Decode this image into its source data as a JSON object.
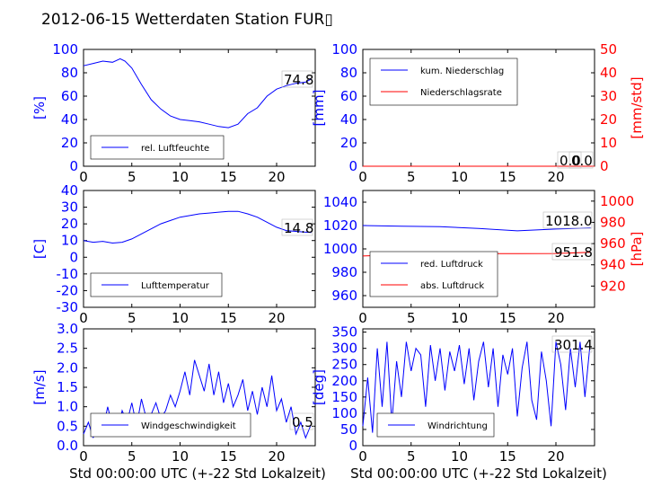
{
  "page": {
    "title": "2012-06-15 Wetterdaten Station FUR▯",
    "xlabel": "Std 00:00:00 UTC (+-22 Std Lokalzeit)"
  },
  "chart_data": [
    {
      "id": "humidity",
      "type": "line",
      "ylabel": "[%]",
      "xlim": [
        0,
        24
      ],
      "ylim": [
        0,
        100
      ],
      "xticks": [
        0,
        5,
        10,
        15,
        20
      ],
      "yticks": [
        0,
        20,
        40,
        60,
        80,
        100
      ],
      "legend": [
        "rel. Luftfeuchte"
      ],
      "legend_placement": "lower-left",
      "series": [
        {
          "name": "rel. Luftfeuchte",
          "color": "#0000ff",
          "x": [
            0,
            1,
            2,
            3,
            3.8,
            4.3,
            5,
            6,
            7,
            8,
            9,
            10,
            11,
            12,
            13,
            14,
            15,
            16,
            17,
            18,
            19,
            20,
            21,
            22,
            23,
            23.6
          ],
          "y": [
            86,
            88,
            90,
            89,
            92,
            90,
            84,
            70,
            57,
            49,
            43,
            40,
            39,
            38,
            36,
            34,
            33,
            36,
            45,
            50,
            60,
            66,
            69,
            71,
            72,
            74.8
          ]
        }
      ],
      "annotations": [
        {
          "text": "74.8"
        }
      ]
    },
    {
      "id": "precip",
      "type": "line",
      "ylabel": "[mm]",
      "ylabel_right": "[mm/std]",
      "xlim": [
        0,
        24
      ],
      "ylim": [
        0,
        100
      ],
      "ylim_right": [
        0,
        50
      ],
      "xticks": [
        0,
        5,
        10,
        15,
        20
      ],
      "yticks": [
        0,
        20,
        40,
        60,
        80,
        100
      ],
      "yticks_right": [
        0,
        10,
        20,
        30,
        40,
        50
      ],
      "legend": [
        "kum. Niederschlag",
        "Niederschlagsrate"
      ],
      "legend_placement": "upper-left",
      "series": [
        {
          "name": "kum. Niederschlag",
          "color": "#0000ff",
          "x": [
            0,
            24
          ],
          "y": [
            0,
            0
          ]
        },
        {
          "name": "Niederschlagsrate",
          "color": "#ff0000",
          "x": [
            0,
            24
          ],
          "y": [
            0,
            0
          ],
          "axis": "right"
        }
      ],
      "annotations": [
        {
          "text": "0.0"
        },
        {
          "text": "0.0"
        }
      ]
    },
    {
      "id": "temperature",
      "type": "line",
      "ylabel": "[C]",
      "xlim": [
        0,
        24
      ],
      "ylim": [
        -30,
        40
      ],
      "xticks": [
        0,
        5,
        10,
        15,
        20
      ],
      "yticks": [
        -30,
        -20,
        -10,
        0,
        10,
        20,
        30,
        40
      ],
      "legend": [
        "Lufttemperatur"
      ],
      "legend_placement": "lower-left",
      "series": [
        {
          "name": "Lufttemperatur",
          "color": "#0000ff",
          "x": [
            0,
            1,
            2,
            3,
            4,
            5,
            6,
            7,
            8,
            9,
            10,
            11,
            12,
            13,
            14,
            15,
            16,
            17,
            18,
            19,
            20,
            21,
            22,
            23,
            23.6
          ],
          "y": [
            10,
            9,
            9.5,
            8.5,
            9,
            11,
            14,
            17,
            20,
            22,
            24,
            25,
            26,
            26.5,
            27,
            27.5,
            27.5,
            26,
            24,
            21,
            18,
            16,
            15.5,
            15,
            14.8
          ]
        }
      ],
      "annotations": [
        {
          "text": "14.8"
        }
      ]
    },
    {
      "id": "pressure",
      "type": "line",
      "xlim": [
        0,
        24
      ],
      "ylim": [
        950,
        1050
      ],
      "ylabel": "",
      "ylabel_right": "[hPa]",
      "ylim_right": [
        900,
        1010
      ],
      "xticks": [
        0,
        5,
        10,
        15,
        20
      ],
      "yticks": [
        960,
        980,
        1000,
        1020,
        1040
      ],
      "yticks_right": [
        920,
        940,
        960,
        980,
        1000
      ],
      "legend": [
        "red. Luftdruck",
        "abs. Luftdruck"
      ],
      "legend_placement": "lower-left",
      "series": [
        {
          "name": "red. Luftdruck",
          "color": "#0000ff",
          "x": [
            0,
            4,
            8,
            12,
            16,
            20,
            23.6
          ],
          "y": [
            1020,
            1019.5,
            1019,
            1017.5,
            1015.5,
            1017,
            1018
          ]
        },
        {
          "name": "abs. Luftdruck",
          "color": "#ff0000",
          "axis": "right",
          "x": [
            0,
            4,
            8,
            12,
            16,
            20,
            23.6
          ],
          "y": [
            948.3,
            949.5,
            950.4,
            950.5,
            950.6,
            950.7,
            951.8
          ]
        }
      ],
      "annotations": [
        {
          "text": "1018.0"
        },
        {
          "text": "951.8"
        }
      ]
    },
    {
      "id": "windspeed",
      "type": "line",
      "ylabel": "[m/s]",
      "xlim": [
        0,
        24
      ],
      "ylim": [
        0,
        3
      ],
      "xticks": [
        0,
        5,
        10,
        15,
        20
      ],
      "yticks": [
        0,
        0.5,
        1,
        1.5,
        2,
        2.5,
        3
      ],
      "ytick_labels": [
        "0.0",
        "0.5",
        "1.0",
        "1.5",
        "2.0",
        "2.5",
        "3.0"
      ],
      "legend": [
        "Windgeschwindigkeit"
      ],
      "legend_placement": "lower-left",
      "series": [
        {
          "name": "Windgeschwindigkeit",
          "color": "#0000ff",
          "x": [
            0,
            0.5,
            1,
            1.5,
            2,
            2.5,
            3,
            3.5,
            4,
            4.5,
            5,
            5.5,
            6,
            6.5,
            7,
            7.5,
            8,
            8.5,
            9,
            9.5,
            10,
            10.5,
            11,
            11.5,
            12,
            12.5,
            13,
            13.5,
            14,
            14.5,
            15,
            15.5,
            16,
            16.5,
            17,
            17.5,
            18,
            18.5,
            19,
            19.5,
            20,
            20.5,
            21,
            21.5,
            22,
            22.5,
            23,
            23.5
          ],
          "y": [
            0.3,
            0.6,
            0.2,
            0.8,
            0.4,
            1.0,
            0.5,
            0.3,
            0.9,
            0.6,
            1.1,
            0.5,
            1.2,
            0.7,
            0.8,
            1.1,
            0.7,
            0.9,
            1.3,
            1.0,
            1.4,
            1.9,
            1.3,
            2.2,
            1.8,
            1.4,
            2.1,
            1.3,
            1.9,
            1.1,
            1.6,
            1.0,
            1.3,
            1.7,
            0.9,
            1.4,
            0.8,
            1.5,
            1.0,
            1.8,
            0.9,
            1.2,
            0.6,
            1.0,
            0.3,
            0.6,
            0.2,
            0.5
          ]
        }
      ],
      "annotations": [
        {
          "text": "0.5"
        }
      ]
    },
    {
      "id": "winddir",
      "type": "line",
      "ylabel": "[deg]",
      "xlim": [
        0,
        24
      ],
      "ylim": [
        0,
        360
      ],
      "xticks": [
        0,
        5,
        10,
        15,
        20
      ],
      "yticks": [
        0,
        50,
        100,
        150,
        200,
        250,
        300,
        350
      ],
      "legend": [
        "Windrichtung"
      ],
      "legend_placement": "lower-left",
      "series": [
        {
          "name": "Windrichtung",
          "color": "#0000ff",
          "x": [
            0,
            0.5,
            1,
            1.5,
            2,
            2.5,
            3,
            3.5,
            4,
            4.5,
            5,
            5.5,
            6,
            6.5,
            7,
            7.5,
            8,
            8.5,
            9,
            9.5,
            10,
            10.5,
            11,
            11.5,
            12,
            12.5,
            13,
            13.5,
            14,
            14.5,
            15,
            15.5,
            16,
            16.5,
            17,
            17.5,
            18,
            18.5,
            19,
            19.5,
            20,
            20.5,
            21,
            21.5,
            22,
            22.5,
            23,
            23.5
          ],
          "y": [
            60,
            210,
            40,
            300,
            120,
            320,
            70,
            260,
            150,
            320,
            230,
            300,
            280,
            120,
            310,
            200,
            300,
            170,
            290,
            230,
            310,
            190,
            300,
            140,
            260,
            320,
            180,
            300,
            120,
            280,
            220,
            300,
            90,
            240,
            320,
            140,
            80,
            290,
            200,
            60,
            320,
            250,
            110,
            300,
            180,
            320,
            150,
            301.4
          ]
        }
      ],
      "annotations": [
        {
          "text": "301.4"
        }
      ]
    }
  ]
}
